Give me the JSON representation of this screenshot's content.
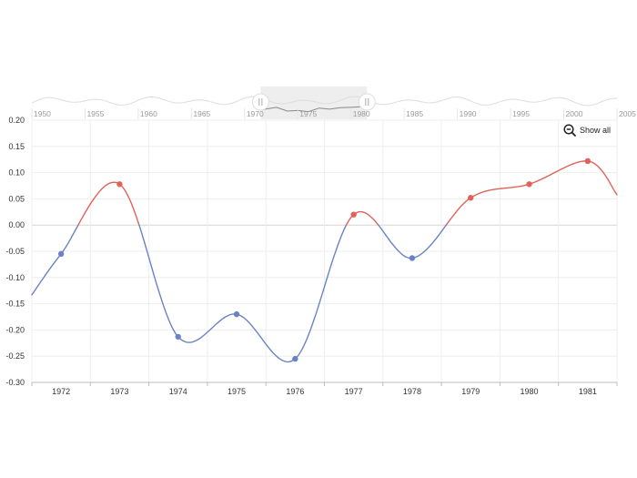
{
  "controls": {
    "show_all_label": "Show all",
    "show_all_icon": "zoom-out-icon"
  },
  "navigator": {
    "ticks": [
      "1950",
      "1955",
      "1960",
      "1965",
      "1970",
      "1975",
      "1980",
      "1985",
      "1990",
      "1995",
      "2000",
      "2005"
    ],
    "range": [
      1950,
      2005
    ],
    "selected_range": [
      1971.5,
      1981.5
    ],
    "colors": {
      "line": "#888888",
      "selection": "#eeeeee",
      "background_line": "#dddddd"
    }
  },
  "chart_data": {
    "type": "line",
    "title": "",
    "xlabel": "",
    "ylabel": "",
    "x_domain": [
      1971.5,
      1981.5
    ],
    "ylim": [
      -0.3,
      0.2
    ],
    "y_ticks": [
      "0.20",
      "0.15",
      "0.10",
      "0.05",
      "0.00",
      "-0.05",
      "-0.10",
      "-0.15",
      "-0.20",
      "-0.25",
      "-0.30"
    ],
    "categories": [
      "1972",
      "1973",
      "1974",
      "1975",
      "1976",
      "1977",
      "1978",
      "1979",
      "1980",
      "1981"
    ],
    "x": [
      1972,
      1973,
      1974,
      1975,
      1976,
      1977,
      1978,
      1979,
      1980,
      1981
    ],
    "values": [
      -0.055,
      0.078,
      -0.213,
      -0.17,
      -0.255,
      0.02,
      -0.063,
      0.052,
      0.078,
      0.122
    ],
    "edge_points": {
      "left": [
        1971.5,
        -0.133
      ],
      "right": [
        1981.5,
        0.058
      ]
    },
    "grid": true,
    "colors": {
      "positive": "#e0635a",
      "negative": "#6b83c6",
      "zero_line": "#d6d6d6"
    }
  }
}
